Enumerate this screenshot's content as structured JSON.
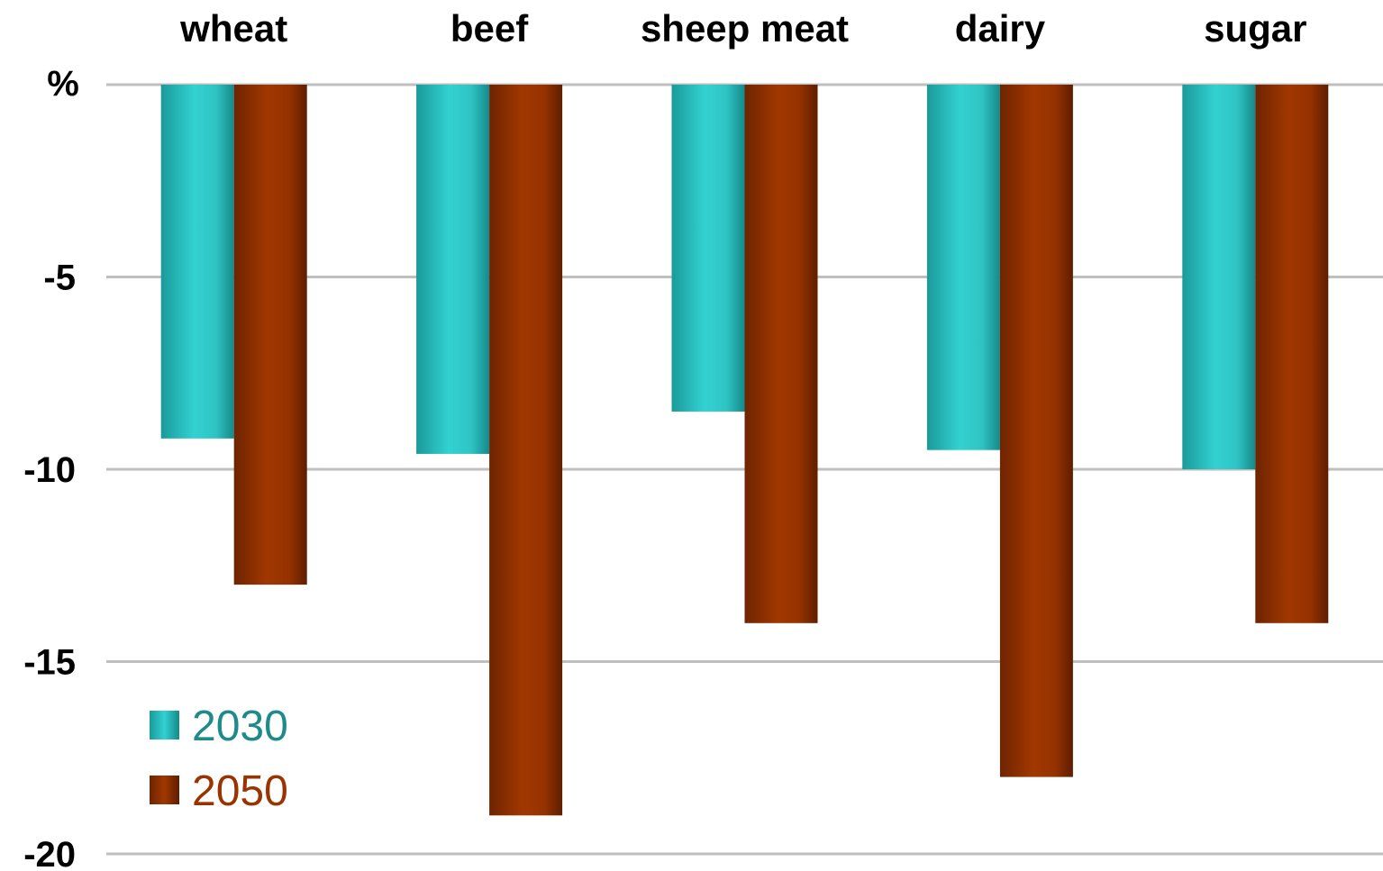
{
  "chart_data": {
    "type": "bar",
    "categories": [
      "wheat",
      "beef",
      "sheep meat",
      "dairy",
      "sugar"
    ],
    "series": [
      {
        "name": "2030",
        "values": [
          -9.2,
          -9.6,
          -8.5,
          -9.5,
          -10.0
        ],
        "color": "#2ec7c7",
        "text_color": "#1e8a8a"
      },
      {
        "name": "2050",
        "values": [
          -13.0,
          -19.0,
          -14.0,
          -18.0,
          -14.0
        ],
        "color": "#993300",
        "text_color": "#993300"
      }
    ],
    "unit_label": "%",
    "ylim": [
      -20,
      0
    ],
    "yticks": [
      {
        "value": 0,
        "label": ""
      },
      {
        "value": -5,
        "label": "-5"
      },
      {
        "value": -10,
        "label": "-10"
      },
      {
        "value": -15,
        "label": "-15"
      },
      {
        "value": -20,
        "label": "-20"
      }
    ],
    "category_axis_position": "top",
    "grid": true,
    "legend_position": "bottom-left",
    "title": "",
    "xlabel": "",
    "ylabel": ""
  }
}
